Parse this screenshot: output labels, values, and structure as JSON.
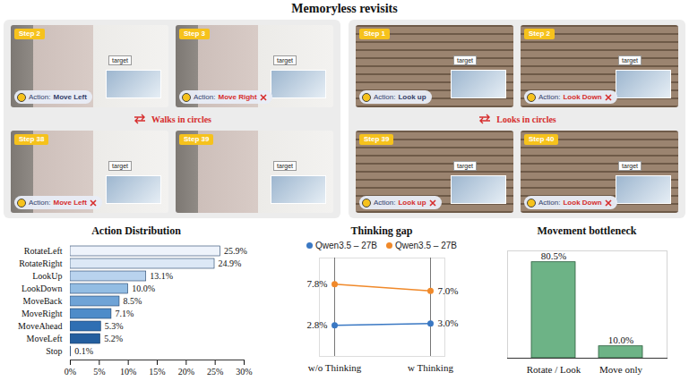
{
  "title": "Memoryless revisits",
  "action_prefix": "Action:",
  "panels": [
    {
      "caption": "Walks in circles",
      "frames": [
        {
          "step": "Step 2",
          "action": "Move Left",
          "wrong": false,
          "target": "target"
        },
        {
          "step": "Step 3",
          "action": "Move Right",
          "wrong": true,
          "target": "target"
        },
        {
          "step": "Step 38",
          "action": "Move Left",
          "wrong": true,
          "target": "target"
        },
        {
          "step": "Step 39",
          "action": null,
          "wrong": false,
          "target": "target"
        }
      ]
    },
    {
      "caption": "Looks in circles",
      "frames": [
        {
          "step": "Step 1",
          "action": "Look up",
          "wrong": false,
          "target": "target"
        },
        {
          "step": "Step 2",
          "action": "Look Down",
          "wrong": true,
          "target": "target"
        },
        {
          "step": "Step 39",
          "action": "Look up",
          "wrong": true,
          "target": "target"
        },
        {
          "step": "Step 40",
          "action": "Look Down",
          "wrong": true,
          "target": "target"
        }
      ]
    }
  ],
  "chart_data": [
    {
      "type": "bar",
      "title": "Action Distribution",
      "orientation": "horizontal",
      "categories": [
        "RotateLeft",
        "RotateRight",
        "LookUp",
        "LookDown",
        "MoveBack",
        "MoveRight",
        "MoveAhead",
        "MoveLeft",
        "Stop"
      ],
      "values": [
        25.9,
        24.9,
        13.1,
        10.0,
        8.5,
        7.1,
        5.3,
        5.2,
        0.1
      ],
      "value_labels": [
        "25.9%",
        "24.9%",
        "13.1%",
        "10.0%",
        "8.5%",
        "7.1%",
        "5.3%",
        "5.2%",
        "0.1%"
      ],
      "colors": [
        "#eef3fb",
        "#dce8f6",
        "#b9d3ee",
        "#93bde3",
        "#6fa3d6",
        "#4e8cc9",
        "#2f6fb3",
        "#245e9e",
        "#1a4a80"
      ],
      "data_labels": true,
      "grid": false,
      "xlim": [
        0,
        30
      ],
      "xticks": [
        {
          "value": 0,
          "label": "0%"
        },
        {
          "value": 5,
          "label": "5%"
        },
        {
          "value": 10,
          "label": "10%"
        },
        {
          "value": 15,
          "label": "15%"
        },
        {
          "value": 20,
          "label": "20%"
        },
        {
          "value": 25,
          "label": "25%"
        },
        {
          "value": 30,
          "label": "30%"
        }
      ]
    },
    {
      "type": "line",
      "title": "Thinking gap",
      "categories": [
        "w/o Thinking",
        "w Thinking"
      ],
      "series": [
        {
          "name": "Qwen3.5 – 27B",
          "color": "#3a78c3",
          "values": [
            2.8,
            3.0
          ],
          "value_labels": [
            "2.8%",
            "3.0%"
          ]
        },
        {
          "name": "Qwen3.5 – 27B",
          "color": "#f0892a",
          "values": [
            7.8,
            7.0
          ],
          "value_labels": [
            "7.8%",
            "7.0%"
          ]
        }
      ],
      "data_labels": true,
      "grid": true,
      "legend": "top",
      "tick_labels": "x",
      "marker": "circle",
      "ylim": [
        -1,
        11
      ],
      "yticks": []
    },
    {
      "type": "bar",
      "title": "Movement bottleneck",
      "categories": [
        "Rotate / Look",
        "Move only"
      ],
      "values": [
        80.5,
        10.0
      ],
      "value_labels": [
        "80.5%",
        "10.0%"
      ],
      "color": "#6db386",
      "data_labels": true,
      "tick_labels": "x",
      "ylim": [
        0,
        90
      ],
      "yticks": []
    }
  ]
}
